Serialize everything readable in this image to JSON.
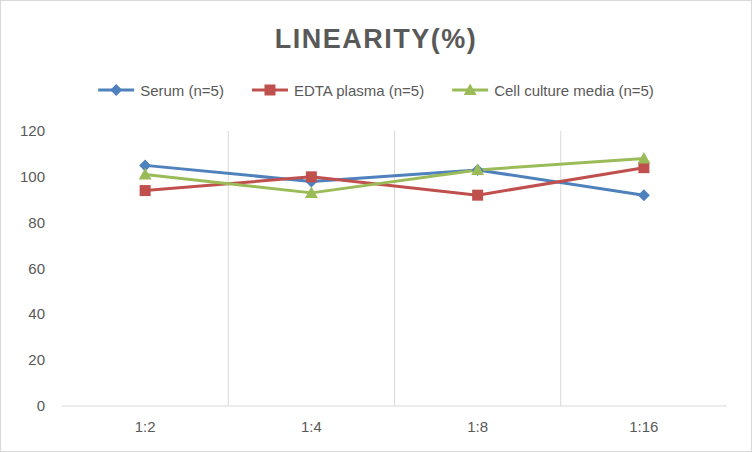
{
  "chart_data": {
    "type": "line",
    "title": "LINEARITY(%)",
    "categories": [
      "1:2",
      "1:4",
      "1:8",
      "1:16"
    ],
    "series": [
      {
        "name": "Serum (n=5)",
        "color": "#4f81bd",
        "marker": "diamond",
        "values": [
          105,
          98,
          103,
          92
        ]
      },
      {
        "name": "EDTA plasma (n=5)",
        "color": "#c0504d",
        "marker": "square",
        "values": [
          94,
          100,
          92,
          104
        ]
      },
      {
        "name": "Cell culture media (n=5)",
        "color": "#9bbb59",
        "marker": "triangle",
        "values": [
          101,
          93,
          103,
          108
        ]
      }
    ],
    "ylim": [
      0,
      120
    ],
    "yticks": [
      0,
      20,
      40,
      60,
      80,
      100,
      120
    ],
    "grid": true,
    "legend": "top"
  }
}
